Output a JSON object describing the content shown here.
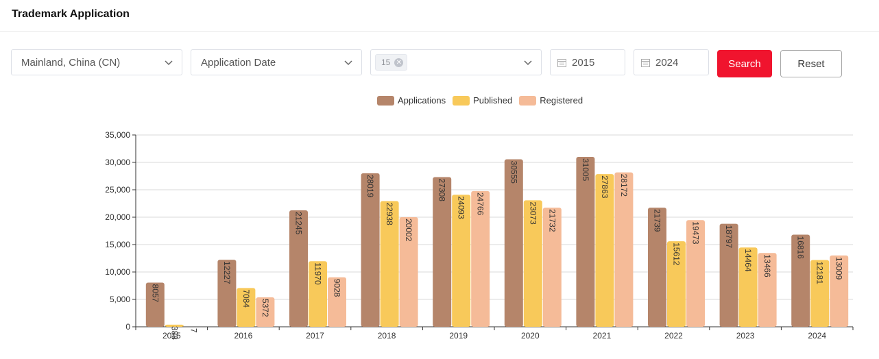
{
  "header": {
    "title": "Trademark Application"
  },
  "filters": {
    "region": "Mainland, China (CN)",
    "date_type": "Application Date",
    "class_tag": "15",
    "start_year": "2015",
    "end_year": "2024",
    "search_label": "Search",
    "reset_label": "Reset"
  },
  "colors": {
    "accent": "#f0142e",
    "applications": "#b5856a",
    "published": "#f8c95a",
    "registered": "#f5bb98"
  },
  "chart_data": {
    "type": "bar",
    "categories": [
      "2015",
      "2016",
      "2017",
      "2018",
      "2019",
      "2020",
      "2021",
      "2022",
      "2023",
      "2024"
    ],
    "series": [
      {
        "name": "Applications",
        "values": [
          8057,
          12227,
          21245,
          28019,
          27308,
          30555,
          31005,
          21739,
          18797,
          16816
        ]
      },
      {
        "name": "Published",
        "values": [
          388,
          7084,
          11970,
          22938,
          24093,
          23073,
          27863,
          15612,
          14464,
          12181
        ]
      },
      {
        "name": "Registered",
        "values": [
          7,
          5372,
          9028,
          20002,
          24766,
          21732,
          28172,
          19473,
          13466,
          13009
        ]
      }
    ],
    "ylim": [
      0,
      35000
    ],
    "yticks": [
      "0",
      "5,000",
      "10,000",
      "15,000",
      "20,000",
      "25,000",
      "30,000",
      "35,000"
    ],
    "ytick_values": [
      0,
      5000,
      10000,
      15000,
      20000,
      25000,
      30000,
      35000
    ],
    "grid": true,
    "legend_position": "top-center"
  }
}
